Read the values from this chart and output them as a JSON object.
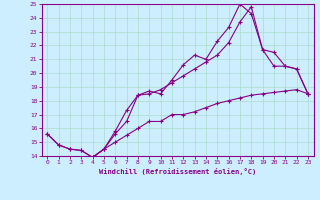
{
  "xlabel": "Windchill (Refroidissement éolien,°C)",
  "bg_color": "#cceeff",
  "grid_color": "#aaddcc",
  "line_color": "#880088",
  "xlim": [
    -0.5,
    23.5
  ],
  "ylim": [
    14,
    25
  ],
  "yticks": [
    14,
    15,
    16,
    17,
    18,
    19,
    20,
    21,
    22,
    23,
    24,
    25
  ],
  "xticks": [
    0,
    1,
    2,
    3,
    4,
    5,
    6,
    7,
    8,
    9,
    10,
    11,
    12,
    13,
    14,
    15,
    16,
    17,
    18,
    19,
    20,
    21,
    22,
    23
  ],
  "curve1_x": [
    0,
    1,
    2,
    3,
    4,
    5,
    6,
    7,
    8,
    9,
    10,
    11,
    12,
    13,
    14,
    15,
    16,
    17,
    18,
    19,
    20,
    21,
    22,
    23
  ],
  "curve1_y": [
    15.6,
    14.8,
    14.5,
    14.4,
    13.9,
    14.5,
    15.6,
    16.5,
    18.4,
    18.7,
    18.5,
    19.5,
    20.6,
    21.3,
    21.0,
    22.3,
    23.3,
    25.0,
    24.3,
    21.7,
    20.5,
    20.5,
    20.3,
    18.5
  ],
  "curve2_x": [
    0,
    1,
    2,
    3,
    4,
    5,
    6,
    7,
    8,
    9,
    10,
    11,
    12,
    13,
    14,
    15,
    16,
    17,
    18,
    19,
    20,
    21,
    22,
    23
  ],
  "curve2_y": [
    15.6,
    14.8,
    14.5,
    14.4,
    13.9,
    14.5,
    15.0,
    15.5,
    16.0,
    16.5,
    16.5,
    17.0,
    17.0,
    17.2,
    17.5,
    17.8,
    18.0,
    18.2,
    18.4,
    18.5,
    18.6,
    18.7,
    18.8,
    18.5
  ],
  "curve3_x": [
    4,
    5,
    6,
    7,
    8,
    9,
    10,
    11,
    12,
    13,
    14,
    15,
    16,
    17,
    18,
    19,
    20,
    21,
    22,
    23
  ],
  "curve3_y": [
    13.9,
    14.5,
    15.8,
    17.3,
    18.4,
    18.5,
    18.8,
    19.3,
    19.8,
    20.3,
    20.8,
    21.3,
    22.2,
    23.7,
    24.8,
    21.7,
    21.5,
    20.5,
    20.3,
    18.5
  ]
}
